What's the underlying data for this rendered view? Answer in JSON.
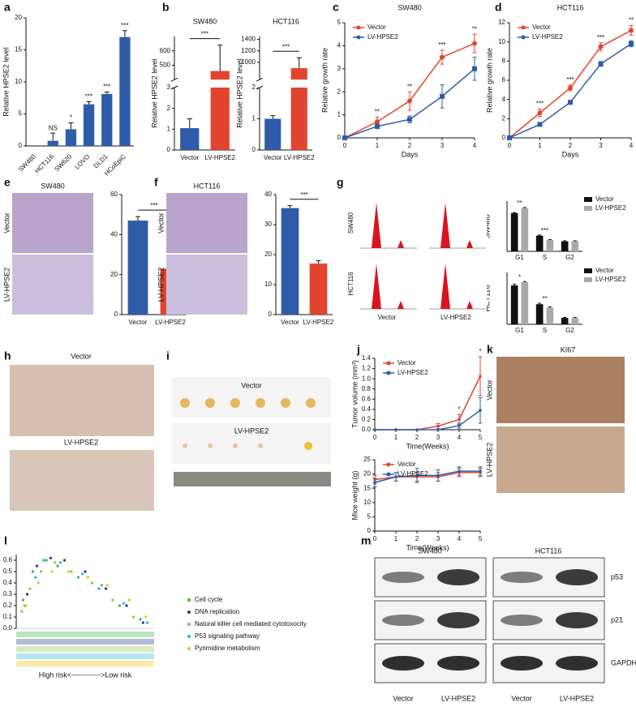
{
  "panel_labels": [
    "a",
    "b",
    "c",
    "d",
    "e",
    "f",
    "g",
    "h",
    "i",
    "j",
    "k",
    "l",
    "m"
  ],
  "chart_data": [
    {
      "type": "bar",
      "ylabel": "Relative HPSE2 level",
      "categories": [
        "SW480",
        "HCT116",
        "SW620",
        "LOVO",
        "DLD1",
        "HCoEpiC"
      ],
      "values": [
        0,
        0.8,
        2.6,
        6.5,
        8.1,
        17.0
      ],
      "errors": [
        0,
        1.2,
        1.0,
        0.4,
        0.3,
        1.0
      ],
      "color": "#2e5ca8",
      "ylim": [
        0,
        20
      ],
      "yticks": [
        0,
        5,
        10,
        15,
        20
      ],
      "annotations": [
        null,
        "NS",
        "*",
        "***",
        "***",
        "***"
      ]
    },
    {
      "type": "bar",
      "title": "SW480",
      "ylabel": "Relative HPSE2 level",
      "categories": [
        "Vector",
        "LV-HPSE2"
      ],
      "values": [
        1.05,
        460
      ],
      "errors": [
        0.45,
        180
      ],
      "colors": [
        "#2e5ca8",
        "#e2452f"
      ],
      "ylim": [
        0,
        700
      ],
      "axis_break": [
        3,
        400
      ],
      "yticks": [
        0,
        1,
        2,
        3,
        500,
        600
      ],
      "significance": "***"
    },
    {
      "type": "bar",
      "title": "HCT116",
      "ylabel": "Relative HPSE2 level",
      "categories": [
        "Vector",
        "LV-HPSE2"
      ],
      "values": [
        1.0,
        900
      ],
      "errors": [
        0.1,
        180
      ],
      "colors": [
        "#2e5ca8",
        "#e2452f"
      ],
      "ylim": [
        0,
        1450
      ],
      "axis_break": [
        2,
        700
      ],
      "yticks": [
        0,
        1,
        2,
        1000,
        1200,
        1400
      ],
      "significance": "***"
    },
    {
      "type": "line",
      "title": "SW480",
      "xlabel": "Days",
      "ylabel": "Relative growth rate",
      "x": [
        0,
        1,
        2,
        3,
        4
      ],
      "xlim": [
        0,
        4
      ],
      "xticks": [
        0,
        1,
        2,
        3,
        4
      ],
      "ylim": [
        0,
        5
      ],
      "yticks": [
        0,
        1,
        2,
        3,
        4,
        5
      ],
      "legend": "upper left",
      "series": [
        {
          "name": "Vector",
          "color": "#e2452f",
          "marker": "circle",
          "values": [
            0,
            0.7,
            1.6,
            3.5,
            4.1
          ],
          "errors": [
            0,
            0.2,
            0.4,
            0.3,
            0.4
          ]
        },
        {
          "name": "LV-HPSE2",
          "color": "#2e5ca8",
          "marker": "square",
          "values": [
            0,
            0.5,
            0.8,
            1.8,
            3.0
          ],
          "errors": [
            0,
            0.1,
            0.15,
            0.5,
            0.5
          ]
        }
      ],
      "annotations": [
        null,
        "**",
        "**",
        "***",
        "**"
      ]
    },
    {
      "type": "line",
      "title": "HCT116",
      "xlabel": "Days",
      "ylabel": "Relative growth rate",
      "x": [
        0,
        1,
        2,
        3,
        4
      ],
      "xlim": [
        0,
        4
      ],
      "xticks": [
        0,
        1,
        2,
        3,
        4
      ],
      "ylim": [
        0,
        12
      ],
      "yticks": [
        0,
        2,
        4,
        6,
        8,
        10,
        12
      ],
      "legend": "upper left",
      "series": [
        {
          "name": "Vector",
          "color": "#e2452f",
          "marker": "circle",
          "values": [
            0,
            2.6,
            5.2,
            9.5,
            11.2
          ],
          "errors": [
            0,
            0.4,
            0.3,
            0.4,
            0.5
          ]
        },
        {
          "name": "LV-HPSE2",
          "color": "#2e5ca8",
          "marker": "square",
          "values": [
            0,
            1.4,
            3.7,
            7.7,
            9.8
          ],
          "errors": [
            0,
            0.1,
            0.15,
            0.25,
            0.3
          ]
        }
      ],
      "annotations": [
        null,
        "***",
        "***",
        "***",
        "**"
      ]
    },
    {
      "type": "bar",
      "categories": [
        "Vector",
        "LV-HPSE2"
      ],
      "values": [
        47,
        23
      ],
      "errors": [
        2,
        1.8
      ],
      "colors": [
        "#2e5ca8",
        "#e2452f"
      ],
      "ylim": [
        0,
        60
      ],
      "yticks": [
        0,
        20,
        40,
        60
      ],
      "significance": "***"
    },
    {
      "type": "bar",
      "categories": [
        "Vector",
        "LV-HPSE2"
      ],
      "values": [
        35.5,
        17
      ],
      "errors": [
        0.8,
        1
      ],
      "colors": [
        "#2e5ca8",
        "#e2452f"
      ],
      "ylim": [
        0,
        40
      ],
      "yticks": [
        0,
        10,
        20,
        30,
        40
      ],
      "significance": "***"
    },
    {
      "type": "grouped_bar",
      "ylabel": "SW480",
      "categories": [
        "G1",
        "S",
        "G2"
      ],
      "ylim": [
        0,
        80
      ],
      "legend": "upper right",
      "series": [
        {
          "name": "Vector",
          "color": "#111111",
          "values": [
            61,
            25,
            16
          ],
          "errors": [
            0.8,
            1,
            0.8
          ]
        },
        {
          "name": "LV-HPSE2",
          "color": "#aaaaaa",
          "values": [
            69,
            18,
            16
          ],
          "errors": [
            0.8,
            0.8,
            0.8
          ]
        }
      ],
      "annotations": [
        "**",
        "***",
        null
      ]
    },
    {
      "type": "grouped_bar",
      "ylabel": "HCT116",
      "categories": [
        "G1",
        "S",
        "G2"
      ],
      "ylim": [
        0,
        80
      ],
      "legend": "upper right",
      "series": [
        {
          "name": "Vector",
          "color": "#111111",
          "values": [
            60,
            31,
            10
          ],
          "errors": [
            2,
            1.5,
            0.8
          ]
        },
        {
          "name": "LV-HPSE2",
          "color": "#aaaaaa",
          "values": [
            65,
            26,
            10
          ],
          "errors": [
            1,
            1,
            0.8
          ]
        }
      ],
      "annotations": [
        "*",
        "**",
        null
      ]
    },
    {
      "type": "line",
      "xlabel": "Time(Weeks)",
      "ylabel": "Tumor volume (mm³)",
      "x": [
        0,
        1,
        2,
        3,
        4,
        5
      ],
      "xlim": [
        0,
        5
      ],
      "xticks": [
        0,
        1,
        2,
        3,
        4,
        5
      ],
      "ylim": [
        0,
        1.4
      ],
      "yticks": [
        {
          "value": 0,
          "label": "0.0"
        },
        0.2,
        0.4,
        0.6,
        0.8,
        {
          "value": 1,
          "label": "1.0"
        },
        1.2,
        1.4
      ],
      "legend": "upper left",
      "series": [
        {
          "name": "Vector",
          "color": "#e2452f",
          "marker": "circle",
          "values": [
            0,
            0,
            0,
            0.07,
            0.2,
            1.05
          ],
          "errors": [
            0,
            0,
            0,
            0.05,
            0.1,
            0.38
          ]
        },
        {
          "name": "LV-HPSE2",
          "color": "#2e5ca8",
          "marker": "circle",
          "values": [
            0,
            0,
            0,
            0,
            0.08,
            0.38
          ],
          "errors": [
            0,
            0,
            0,
            0,
            0.05,
            0.25
          ]
        }
      ],
      "annotations": [
        null,
        null,
        null,
        null,
        "*",
        "*"
      ]
    },
    {
      "type": "line",
      "xlabel": "Time(Weeks)",
      "ylabel": "Mice weight (g)",
      "x": [
        0,
        1,
        2,
        3,
        4,
        5
      ],
      "xlim": [
        0,
        5
      ],
      "xticks": [
        0,
        1,
        2,
        3,
        4,
        5
      ],
      "ylim": [
        0,
        25
      ],
      "yticks": [
        0,
        5,
        10,
        15,
        20,
        25
      ],
      "legend": "upper left",
      "series": [
        {
          "name": "Vector",
          "color": "#e2452f",
          "marker": "circle",
          "values": [
            18,
            19,
            19,
            19,
            20.5,
            20.5
          ],
          "errors": [
            1.5,
            1.5,
            1.5,
            1.5,
            1.5,
            1.5
          ]
        },
        {
          "name": "LV-HPSE2",
          "color": "#2e5ca8",
          "marker": "circle",
          "values": [
            17,
            19,
            19.5,
            19.5,
            21,
            21
          ],
          "errors": [
            1.5,
            1.5,
            2.5,
            2,
            1.5,
            1.5
          ]
        }
      ]
    },
    {
      "type": "scatter",
      "xlabel": "High risk<------------>Low risk",
      "ylabel": "Enrichment Score",
      "xlim": [
        0,
        100
      ],
      "ylim": [
        0,
        0.65
      ],
      "yticks": [
        {
          "value": 0,
          "label": "0.0"
        },
        0.1,
        0.2,
        0.3,
        0.4,
        0.5,
        0.6
      ],
      "legend": "right",
      "series": [
        {
          "name": "Cell cycle",
          "color": "#3cb44b",
          "x": [
            5,
            12,
            20,
            30,
            45,
            60,
            75,
            90
          ],
          "values": [
            0.25,
            0.5,
            0.6,
            0.55,
            0.45,
            0.35,
            0.2,
            0.08
          ]
        },
        {
          "name": "DNA replication",
          "color": "#1f3c88",
          "x": [
            8,
            15,
            25,
            35,
            50,
            65,
            80,
            92
          ],
          "values": [
            0.3,
            0.55,
            0.62,
            0.6,
            0.5,
            0.35,
            0.2,
            0.05
          ]
        },
        {
          "name": "Natural killer cell mediated cytotoxocity",
          "color": "#8bc34a",
          "x": [
            4,
            10,
            18,
            28,
            40,
            55,
            70,
            85
          ],
          "values": [
            0.15,
            0.35,
            0.5,
            0.58,
            0.5,
            0.4,
            0.25,
            0.1
          ]
        },
        {
          "name": "P53 signaling pathway",
          "color": "#29b6d6",
          "x": [
            6,
            14,
            22,
            32,
            48,
            62,
            78,
            95
          ],
          "values": [
            0.2,
            0.45,
            0.6,
            0.58,
            0.48,
            0.38,
            0.22,
            0.05
          ]
        },
        {
          "name": "Pyrimidine metabolism",
          "color": "#f2c200",
          "x": [
            7,
            16,
            26,
            38,
            52,
            66,
            82,
            94
          ],
          "values": [
            0.2,
            0.4,
            0.5,
            0.5,
            0.45,
            0.38,
            0.25,
            0.1
          ]
        }
      ]
    }
  ],
  "photos": {
    "e": {
      "title": "SW480",
      "rows": [
        "Vector",
        "LV-HPSE2"
      ]
    },
    "f": {
      "title": "HCT116",
      "rows": [
        "Vector",
        "LV-HPSE2"
      ]
    },
    "g": {
      "rows": [
        "SW480",
        "HCT116"
      ],
      "columns": [
        "Vector",
        "LV-HPSE2"
      ]
    },
    "h": {
      "labels": [
        "Vector",
        "LV-HPSE2"
      ]
    },
    "i": {
      "labels": [
        "Vector",
        "LV-HPSE2"
      ]
    },
    "k": {
      "title": "KI67",
      "rows": [
        "Vector",
        "LV-HPSE2"
      ]
    },
    "m": {
      "cell_lines": [
        "SW480",
        "HCT116"
      ],
      "proteins": [
        "p53",
        "p21",
        "GAPDH"
      ],
      "lanes": [
        "Vector",
        "LV-HPSE2",
        "Vector",
        "LV-HPSE2"
      ]
    }
  }
}
